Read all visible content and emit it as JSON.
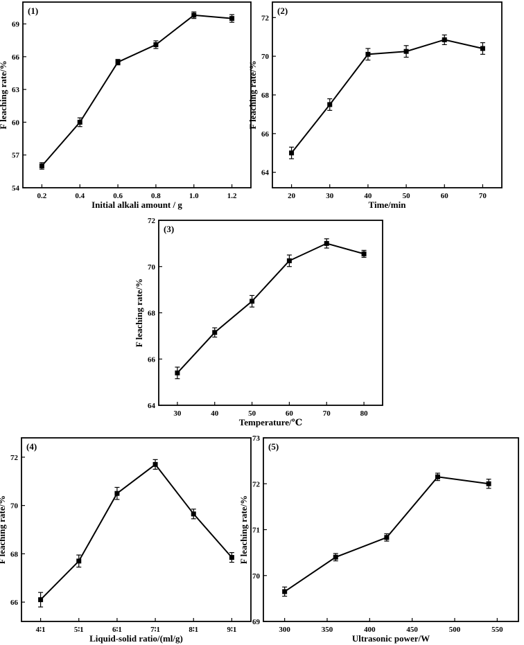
{
  "chart_data": [
    {
      "panel_label": "(1)",
      "type": "line",
      "marker": "square",
      "error_bars": true,
      "xlabel": "Initial alkali amount / g",
      "ylabel": "F leaching rate/%",
      "xlim": [
        0.1,
        1.3
      ],
      "ylim": [
        54,
        71
      ],
      "x_ticks": [
        "0.2",
        "0.4",
        "0.6",
        "0.8",
        "1.0",
        "1.2"
      ],
      "y_ticks": [
        "54",
        "57",
        "60",
        "63",
        "66",
        "69"
      ],
      "x": [
        0.2,
        0.4,
        0.6,
        0.8,
        1.0,
        1.2
      ],
      "y": [
        56.0,
        60.0,
        65.5,
        67.1,
        69.8,
        69.5
      ],
      "err": [
        0.3,
        0.4,
        0.25,
        0.35,
        0.3,
        0.35
      ]
    },
    {
      "panel_label": "(2)",
      "type": "line",
      "marker": "square",
      "error_bars": true,
      "xlabel": "Time/min",
      "ylabel": "F leaching rate/%",
      "xlim": [
        15,
        75
      ],
      "ylim": [
        63.2,
        72.8
      ],
      "x_ticks": [
        "20",
        "30",
        "40",
        "50",
        "60",
        "70"
      ],
      "y_ticks": [
        "64",
        "66",
        "68",
        "70",
        "72"
      ],
      "x": [
        20,
        30,
        40,
        50,
        60,
        70
      ],
      "y": [
        65.0,
        67.5,
        70.1,
        70.25,
        70.85,
        70.4
      ],
      "err": [
        0.3,
        0.3,
        0.3,
        0.3,
        0.25,
        0.3
      ]
    },
    {
      "panel_label": "(3)",
      "type": "line",
      "marker": "square",
      "error_bars": true,
      "xlabel": "Temperature/℃",
      "ylabel": "F leaching rate/%",
      "xlim": [
        25,
        85
      ],
      "ylim": [
        64,
        72
      ],
      "x_ticks": [
        "30",
        "40",
        "50",
        "60",
        "70",
        "80"
      ],
      "y_ticks": [
        "64",
        "66",
        "68",
        "70",
        "72"
      ],
      "x": [
        30,
        40,
        50,
        60,
        70,
        80
      ],
      "y": [
        65.4,
        67.15,
        68.5,
        70.25,
        71.0,
        70.55
      ],
      "err": [
        0.25,
        0.2,
        0.25,
        0.25,
        0.2,
        0.15
      ]
    },
    {
      "panel_label": "(4)",
      "type": "line",
      "marker": "square",
      "error_bars": true,
      "xlabel": "Liquid-solid ratio/(ml/g)",
      "ylabel": "F leaching rate/%",
      "categories": [
        "4∶1",
        "5∶1",
        "6∶1",
        "7∶1",
        "8∶1",
        "9∶1"
      ],
      "ylim": [
        65.2,
        72.8
      ],
      "y_ticks": [
        "66",
        "68",
        "70",
        "72"
      ],
      "x": [
        4,
        5,
        6,
        7,
        8,
        9
      ],
      "y": [
        66.1,
        67.7,
        70.5,
        71.7,
        69.65,
        67.85
      ],
      "err": [
        0.3,
        0.25,
        0.25,
        0.2,
        0.2,
        0.2
      ]
    },
    {
      "panel_label": "(5)",
      "type": "line",
      "marker": "square",
      "error_bars": true,
      "xlabel": "Ultrasonic power/W",
      "ylabel": "F leaching rate/%",
      "xlim": [
        275,
        575
      ],
      "ylim": [
        69,
        73
      ],
      "x_ticks": [
        "300",
        "350",
        "400",
        "450",
        "500",
        "550"
      ],
      "y_ticks": [
        "69",
        "70",
        "71",
        "72",
        "73"
      ],
      "x": [
        300,
        360,
        420,
        480,
        540
      ],
      "y": [
        69.65,
        70.4,
        70.83,
        72.15,
        72.0
      ],
      "err": [
        0.1,
        0.08,
        0.08,
        0.08,
        0.1
      ]
    }
  ]
}
